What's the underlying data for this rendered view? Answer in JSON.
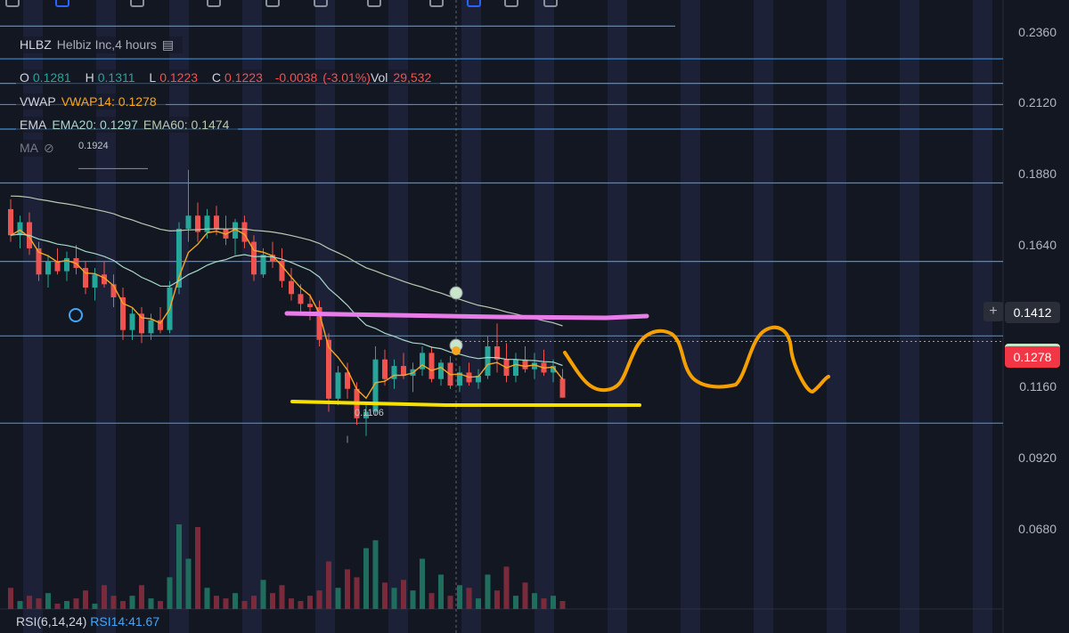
{
  "symbol": {
    "ticker": "HLBZ",
    "name": "Helbiz Inc",
    "interval": "4 hours"
  },
  "ohlc": {
    "o_label": "O",
    "o": "0.1281",
    "h_label": "H",
    "h": "0.1311",
    "l_label": "L",
    "l": "0.1223",
    "c_label": "C",
    "c": "0.1223",
    "change": "-0.0038",
    "change_pct": "(-3.01%)",
    "vol_label": "Vol",
    "vol": "29,532"
  },
  "vwap": {
    "label": "VWAP",
    "value": "VWAP14: 0.1278"
  },
  "ema": {
    "label": "EMA",
    "ema20": "EMA20: 0.1297",
    "ema60": "EMA60: 0.1474"
  },
  "ma": {
    "label": "MA"
  },
  "markers": {
    "high": "0.1924",
    "low": "0.1106"
  },
  "price_axis": {
    "ticks": [
      "0.2360",
      "0.2120",
      "0.1880",
      "0.1640",
      "0.1160",
      "0.0920",
      "0.0680"
    ]
  },
  "price_tags": {
    "crosshair": "0.1412",
    "last": "0.1278",
    "plus": "+"
  },
  "rsi": {
    "label": "RSI(6,14,24)",
    "value": "RSI14:41.67"
  },
  "colors": {
    "background": "#131722",
    "up": "#26a69a",
    "down": "#ef5350",
    "vwap": "#f5a623",
    "ema20": "#a8d8c8",
    "ema60": "#b9c9b0",
    "hline": "#3d8fd6",
    "pink_line": "#e87ce8",
    "yellow_line": "#f5e000",
    "orange_drawing": "#f5a000",
    "tag_red": "#f23645"
  },
  "chart_data": {
    "type": "candlestick",
    "ylim": [
      0.056,
      0.244
    ],
    "yticks": [
      0.236,
      0.212,
      0.188,
      0.164,
      0.116,
      0.092,
      0.068
    ],
    "horizontal_lines": [
      0.236,
      0.226,
      0.2185,
      0.212,
      0.2045,
      0.188,
      0.164,
      0.1412,
      0.1145
    ],
    "drawings": {
      "pink_resistance": 0.1405,
      "yellow_support": 0.1141
    },
    "candles": [
      [
        0.18,
        0.183,
        0.17,
        0.172
      ],
      [
        0.172,
        0.178,
        0.168,
        0.176
      ],
      [
        0.176,
        0.179,
        0.166,
        0.168
      ],
      [
        0.168,
        0.17,
        0.158,
        0.16
      ],
      [
        0.16,
        0.166,
        0.156,
        0.164
      ],
      [
        0.164,
        0.168,
        0.16,
        0.161
      ],
      [
        0.161,
        0.167,
        0.158,
        0.165
      ],
      [
        0.165,
        0.169,
        0.16,
        0.162
      ],
      [
        0.162,
        0.164,
        0.154,
        0.156
      ],
      [
        0.156,
        0.162,
        0.152,
        0.16
      ],
      [
        0.16,
        0.164,
        0.156,
        0.157
      ],
      [
        0.157,
        0.16,
        0.15,
        0.153
      ],
      [
        0.153,
        0.156,
        0.14,
        0.143
      ],
      [
        0.143,
        0.15,
        0.14,
        0.148
      ],
      [
        0.148,
        0.15,
        0.139,
        0.142
      ],
      [
        0.142,
        0.148,
        0.14,
        0.146
      ],
      [
        0.146,
        0.15,
        0.142,
        0.143
      ],
      [
        0.143,
        0.158,
        0.142,
        0.156
      ],
      [
        0.156,
        0.176,
        0.154,
        0.174
      ],
      [
        0.174,
        0.192,
        0.17,
        0.178
      ],
      [
        0.178,
        0.182,
        0.17,
        0.173
      ],
      [
        0.173,
        0.18,
        0.171,
        0.178
      ],
      [
        0.178,
        0.181,
        0.172,
        0.174
      ],
      [
        0.174,
        0.178,
        0.169,
        0.171
      ],
      [
        0.171,
        0.177,
        0.166,
        0.176
      ],
      [
        0.176,
        0.178,
        0.168,
        0.17
      ],
      [
        0.17,
        0.172,
        0.158,
        0.16
      ],
      [
        0.16,
        0.168,
        0.159,
        0.166
      ],
      [
        0.166,
        0.17,
        0.162,
        0.164
      ],
      [
        0.164,
        0.168,
        0.156,
        0.158
      ],
      [
        0.158,
        0.162,
        0.152,
        0.154
      ],
      [
        0.154,
        0.157,
        0.148,
        0.151
      ],
      [
        0.151,
        0.154,
        0.146,
        0.15
      ],
      [
        0.15,
        0.152,
        0.138,
        0.14
      ],
      [
        0.14,
        0.142,
        0.118,
        0.122
      ],
      [
        0.122,
        0.132,
        0.12,
        0.13
      ],
      [
        0.13,
        0.133,
        0.122,
        0.125
      ],
      [
        0.125,
        0.127,
        0.114,
        0.116
      ],
      [
        0.116,
        0.12,
        0.1106,
        0.118
      ],
      [
        0.118,
        0.138,
        0.117,
        0.134
      ],
      [
        0.134,
        0.137,
        0.126,
        0.128
      ],
      [
        0.128,
        0.134,
        0.125,
        0.132
      ],
      [
        0.132,
        0.136,
        0.128,
        0.129
      ],
      [
        0.129,
        0.133,
        0.124,
        0.131
      ],
      [
        0.131,
        0.138,
        0.129,
        0.136
      ],
      [
        0.136,
        0.138,
        0.127,
        0.128
      ],
      [
        0.128,
        0.134,
        0.126,
        0.133
      ],
      [
        0.133,
        0.135,
        0.125,
        0.126
      ],
      [
        0.126,
        0.132,
        0.124,
        0.13
      ],
      [
        0.13,
        0.133,
        0.126,
        0.127
      ],
      [
        0.127,
        0.131,
        0.125,
        0.129
      ],
      [
        0.129,
        0.141,
        0.128,
        0.138
      ],
      [
        0.138,
        0.145,
        0.13,
        0.134
      ],
      [
        0.134,
        0.139,
        0.127,
        0.129
      ],
      [
        0.129,
        0.136,
        0.127,
        0.134
      ],
      [
        0.134,
        0.138,
        0.13,
        0.131
      ],
      [
        0.131,
        0.136,
        0.128,
        0.133
      ],
      [
        0.133,
        0.137,
        0.129,
        0.13
      ],
      [
        0.13,
        0.134,
        0.127,
        0.132
      ],
      [
        0.1281,
        0.1311,
        0.1223,
        0.1223
      ]
    ],
    "volume": [
      0.8,
      0.3,
      0.5,
      0.4,
      0.6,
      0.2,
      0.3,
      0.4,
      0.7,
      0.2,
      0.9,
      0.5,
      0.3,
      0.5,
      0.9,
      0.4,
      0.3,
      1.2,
      3.2,
      1.9,
      3.1,
      0.8,
      0.5,
      0.4,
      0.6,
      0.3,
      0.5,
      1.1,
      0.6,
      0.9,
      0.4,
      0.3,
      0.5,
      0.7,
      1.8,
      0.8,
      1.5,
      1.2,
      2.3,
      2.6,
      1.0,
      0.8,
      1.1,
      0.7,
      1.9,
      0.6,
      1.3,
      0.5,
      0.9,
      0.8,
      0.4,
      1.3,
      0.7,
      1.6,
      0.5,
      1.0,
      0.6,
      0.4,
      0.5,
      0.3
    ]
  }
}
